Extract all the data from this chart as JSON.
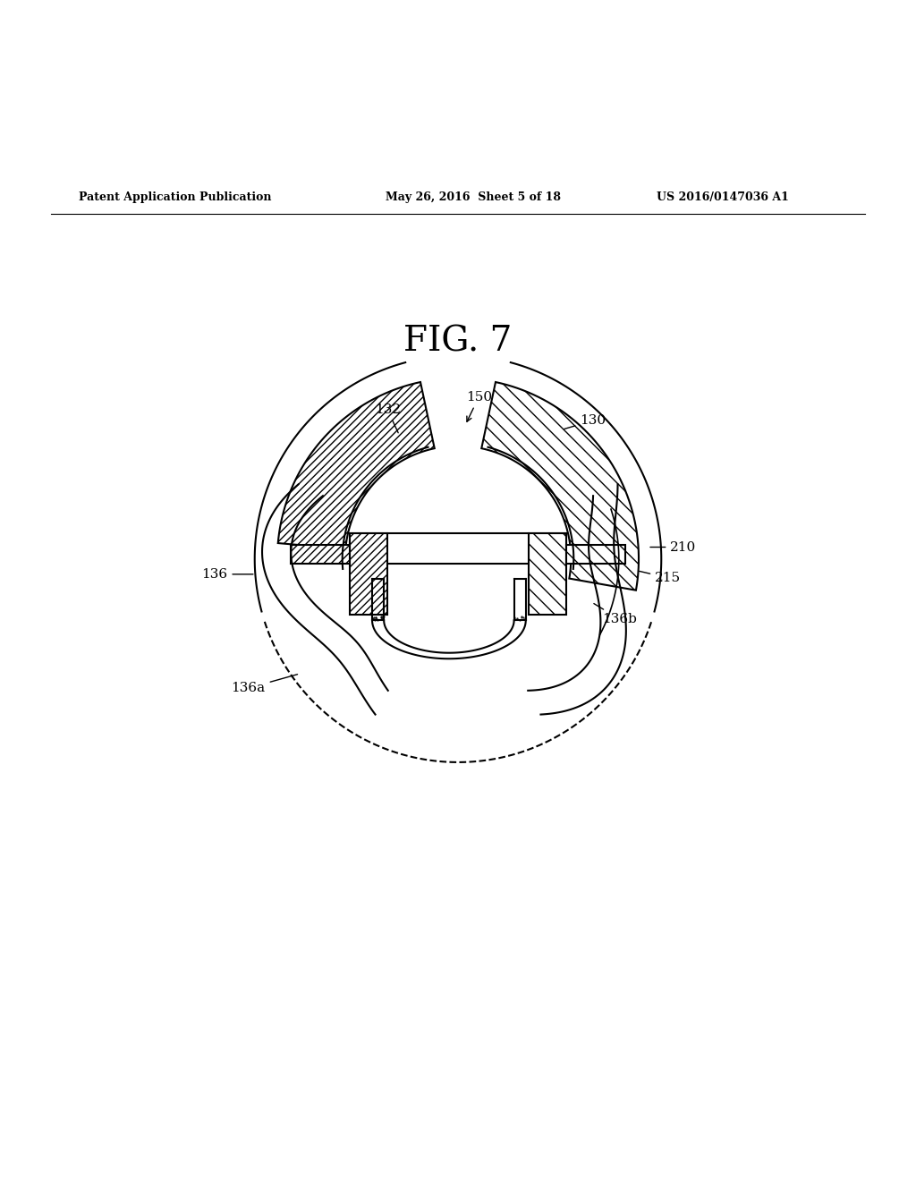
{
  "title": "FIG. 7",
  "patent_header_left": "Patent Application Publication",
  "patent_header_mid": "May 26, 2016  Sheet 5 of 18",
  "patent_header_right": "US 2016/0147036 A1",
  "bg_color": "#ffffff",
  "line_color": "#000000"
}
